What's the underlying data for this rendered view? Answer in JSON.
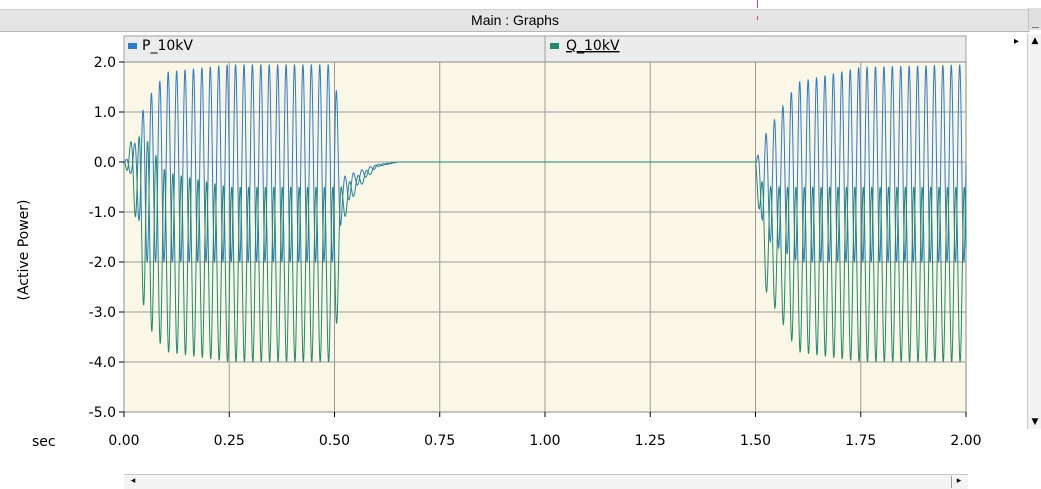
{
  "window": {
    "title": "Main : Graphs",
    "minimize_label": "_"
  },
  "chart_data": {
    "type": "line",
    "ylabel": "(Active Power)",
    "xlabel": "sec",
    "xlim": [
      0.0,
      2.0
    ],
    "ylim": [
      -5.0,
      2.0
    ],
    "x_ticks": [
      "0.00",
      "0.25",
      "0.50",
      "0.75",
      "1.00",
      "1.25",
      "1.50",
      "1.75",
      "2.00"
    ],
    "y_ticks": [
      "2.0",
      "1.0",
      "0.0",
      "-1.0",
      "-2.0",
      "-3.0",
      "-4.0",
      "-5.0"
    ],
    "grid": true,
    "legend_placement": "top",
    "series": [
      {
        "name": "P_10kV",
        "color": "#2a7bd1",
        "description_points": {
          "x": [
            0.0,
            0.02,
            0.05,
            0.1,
            0.25,
            0.5,
            0.52,
            0.55,
            0.6,
            0.65,
            1.0,
            1.5,
            1.52,
            1.6,
            1.75,
            2.0
          ],
          "y_max": [
            0.0,
            0.2,
            1.2,
            1.8,
            1.95,
            1.95,
            -0.3,
            -0.2,
            -0.05,
            0.0,
            0.0,
            0.0,
            0.5,
            1.6,
            1.9,
            1.95
          ],
          "y_min": [
            0.0,
            -0.3,
            -2.0,
            -2.0,
            -2.0,
            -2.0,
            -1.0,
            -0.5,
            -0.1,
            0.0,
            0.0,
            0.0,
            -1.5,
            -2.0,
            -2.0,
            -2.0
          ]
        }
      },
      {
        "name": "Q_10kV",
        "color": "#1f8a70",
        "description_points": {
          "x": [
            0.0,
            0.02,
            0.05,
            0.1,
            0.25,
            0.5,
            0.52,
            0.55,
            0.6,
            0.65,
            1.0,
            1.5,
            1.52,
            1.6,
            1.75,
            2.0
          ],
          "y_max": [
            0.0,
            0.5,
            0.5,
            -0.2,
            -0.5,
            -0.5,
            -0.5,
            -0.3,
            -0.05,
            0.0,
            0.0,
            0.0,
            -0.5,
            -0.5,
            -0.5,
            -0.5
          ],
          "y_min": [
            0.0,
            -0.5,
            -3.2,
            -3.8,
            -4.0,
            -4.0,
            -1.2,
            -0.6,
            -0.1,
            0.0,
            0.0,
            0.0,
            -2.5,
            -3.8,
            -4.0,
            -4.0
          ]
        }
      }
    ]
  }
}
